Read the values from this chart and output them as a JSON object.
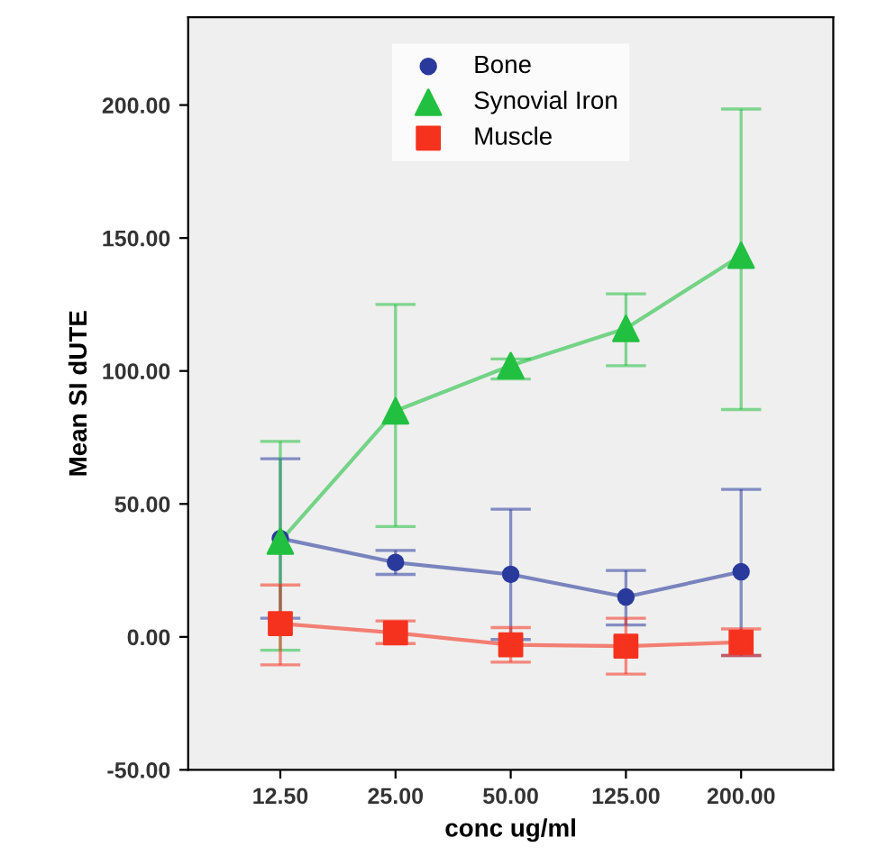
{
  "chart_data": {
    "type": "line",
    "xlabel": "conc ug/ml",
    "ylabel": "Mean SI dUTE",
    "categories": [
      "12.50",
      "25.00",
      "50.00",
      "125.00",
      "200.00"
    ],
    "ylim": [
      -50,
      233
    ],
    "yticks": [
      {
        "value": -50,
        "label": "-50.00"
      },
      {
        "value": 0,
        "label": "0.00"
      },
      {
        "value": 50,
        "label": "50.00"
      },
      {
        "value": 100,
        "label": "100.00"
      },
      {
        "value": 150,
        "label": "150.00"
      },
      {
        "value": 200,
        "label": "200.00"
      }
    ],
    "legend": "top",
    "grid": false,
    "series": [
      {
        "name": "Bone",
        "color": "#2a3a9c",
        "marker": "circle",
        "values": [
          37,
          28,
          23.5,
          15,
          24.5
        ],
        "errors": [
          30,
          [
            23.5,
            32.5
          ],
          24.5,
          [
            4.5,
            25
          ],
          [
            -7,
            55.5
          ]
        ]
      },
      {
        "name": "Synovial Iron",
        "color": "#22c040",
        "marker": "triangle",
        "values": [
          36,
          85,
          102,
          116,
          143.5
        ],
        "errors": [
          [
            -5,
            73.5
          ],
          [
            41.5,
            125
          ],
          [
            97,
            104.5
          ],
          [
            102,
            129
          ],
          [
            85.5,
            198.5
          ]
        ]
      },
      {
        "name": "Muscle",
        "color": "#f5321e",
        "marker": "square",
        "values": [
          5,
          1.5,
          -3,
          -3.5,
          -2
        ],
        "errors": [
          [
            -10.5,
            19.5
          ],
          [
            -2.5,
            6
          ],
          [
            -9.5,
            3.5
          ],
          [
            -14,
            7
          ],
          [
            -7,
            3
          ]
        ]
      }
    ]
  }
}
